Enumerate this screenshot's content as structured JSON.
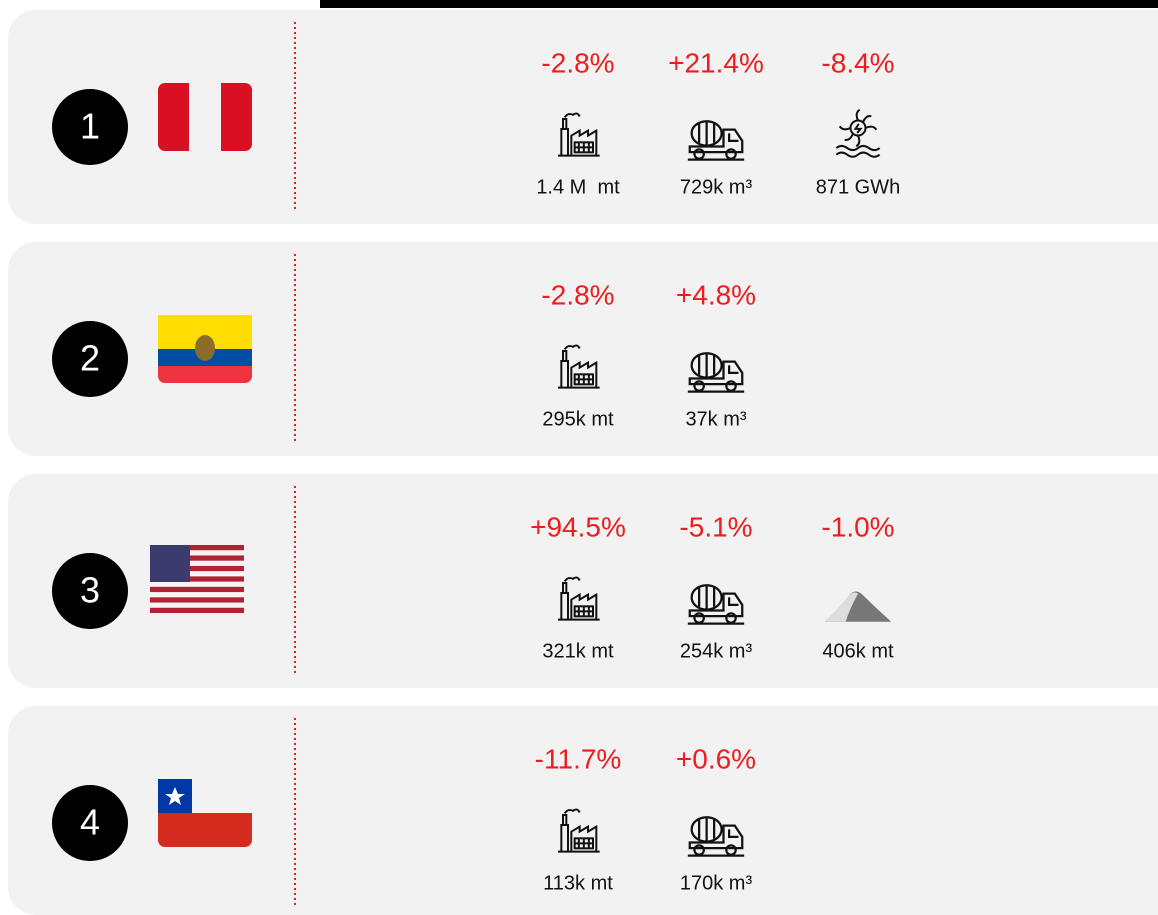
{
  "rows": [
    {
      "rank": "1",
      "metrics": [
        {
          "change": "-2.8%",
          "value": "1.4 M  mt"
        },
        {
          "change": "+21.4%",
          "value": "729k m³"
        },
        {
          "change": "-8.4%",
          "value": "871 GWh"
        }
      ]
    },
    {
      "rank": "2",
      "metrics": [
        {
          "change": "-2.8%",
          "value": "295k mt"
        },
        {
          "change": "+4.8%",
          "value": "37k m³"
        }
      ]
    },
    {
      "rank": "3",
      "metrics": [
        {
          "change": "+94.5%",
          "value": "321k mt"
        },
        {
          "change": "-5.1%",
          "value": "254k m³"
        },
        {
          "change": "-1.0%",
          "value": "406k mt"
        }
      ]
    },
    {
      "rank": "4",
      "metrics": [
        {
          "change": "-11.7%",
          "value": "113k mt"
        },
        {
          "change": "+0.6%",
          "value": "170k m³"
        }
      ]
    }
  ]
}
